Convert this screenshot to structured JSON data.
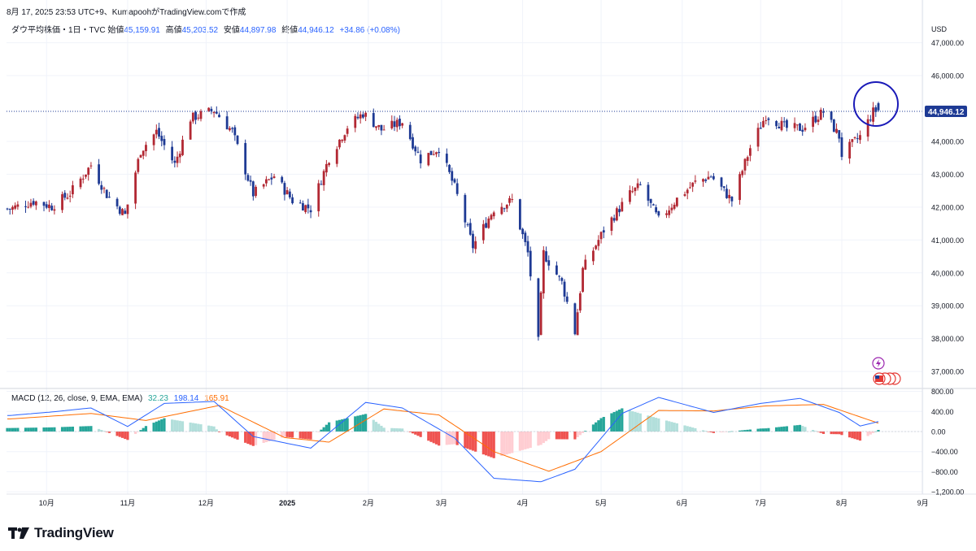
{
  "header": {
    "published": "8月 17, 2025 23:53 UTC+9、KumapoohがTradingView.comで作成",
    "symbol": "ダウ平均株価・1日・TVC",
    "open_label": "始値",
    "open_value": "45,159.91",
    "high_label": "高値",
    "high_value": "45,203.52",
    "low_label": "安値",
    "low_value": "44,897.98",
    "close_label": "終値",
    "close_value": "44,946.12",
    "change": "+34.86 (+0.08%)"
  },
  "price_axis": {
    "currency": "USD",
    "labels": [
      "47,000.00",
      "46,000.00",
      "44,946.12",
      "44,000.00",
      "43,000.00",
      "42,000.00",
      "41,000.00",
      "40,000.00",
      "39,000.00",
      "38,000.00",
      "37,000.00"
    ]
  },
  "macd": {
    "label": "MACD (12, 26, close, 9, EMA, EMA)",
    "hist_value": "32.23",
    "macd_value": "198.14",
    "signal_value": "165.91",
    "axis_labels": [
      "800.00",
      "400.00",
      "0.00",
      "−400.00",
      "−800.00",
      "−1,200.00"
    ],
    "colors": {
      "macd": "#2962ff",
      "signal": "#ff6d00",
      "hist_up": "#26a69a",
      "hist_down": "#ef5350"
    }
  },
  "time_axis": {
    "labels": [
      "10月",
      "11月",
      "12月",
      "2025",
      "2月",
      "3月",
      "4月",
      "5月",
      "6月",
      "7月",
      "8月",
      "9月"
    ]
  },
  "brand": {
    "name": "TradingView"
  },
  "chart_data": {
    "type": "candlestick",
    "colors": {
      "up": "#b22833",
      "down": "#1e3a94"
    },
    "ylim": [
      36700,
      47400
    ],
    "last_price": 44946.12,
    "close_series": [
      [
        "2024-09-17",
        41950
      ],
      [
        "2024-09-26",
        42180
      ],
      [
        "2024-10-03",
        42020
      ],
      [
        "2024-10-10",
        42420
      ],
      [
        "2024-10-18",
        43280
      ],
      [
        "2024-10-24",
        42380
      ],
      [
        "2024-10-31",
        41760
      ],
      [
        "2024-11-06",
        43720
      ],
      [
        "2024-11-12",
        44300
      ],
      [
        "2024-11-19",
        43300
      ],
      [
        "2024-11-25",
        44700
      ],
      [
        "2024-12-04",
        44950
      ],
      [
        "2024-12-11",
        44300
      ],
      [
        "2024-12-19",
        42400
      ],
      [
        "2024-12-27",
        42950
      ],
      [
        "2025-01-03",
        42200
      ],
      [
        "2025-01-10",
        41950
      ],
      [
        "2025-01-17",
        43500
      ],
      [
        "2025-01-24",
        44450
      ],
      [
        "2025-01-30",
        44850
      ],
      [
        "2025-02-06",
        44350
      ],
      [
        "2025-02-14",
        44600
      ],
      [
        "2025-02-21",
        43450
      ],
      [
        "2025-02-28",
        43800
      ],
      [
        "2025-03-06",
        42600
      ],
      [
        "2025-03-13",
        40800
      ],
      [
        "2025-03-21",
        41950
      ],
      [
        "2025-03-28",
        42200
      ],
      [
        "2025-04-03",
        40600
      ],
      [
        "2025-04-07",
        37900
      ],
      [
        "2025-04-09",
        40600
      ],
      [
        "2025-04-16",
        39700
      ],
      [
        "2025-04-21",
        38200
      ],
      [
        "2025-04-24",
        40100
      ],
      [
        "2025-05-02",
        41300
      ],
      [
        "2025-05-12",
        42400
      ],
      [
        "2025-05-16",
        42650
      ],
      [
        "2025-05-23",
        41600
      ],
      [
        "2025-05-30",
        42250
      ],
      [
        "2025-06-06",
        42750
      ],
      [
        "2025-06-12",
        42950
      ],
      [
        "2025-06-20",
        42200
      ],
      [
        "2025-06-27",
        43800
      ],
      [
        "2025-07-03",
        44800
      ],
      [
        "2025-07-11",
        44400
      ],
      [
        "2025-07-17",
        44400
      ],
      [
        "2025-07-25",
        44900
      ],
      [
        "2025-07-31",
        44150
      ],
      [
        "2025-08-01",
        43600
      ],
      [
        "2025-08-08",
        44150
      ],
      [
        "2025-08-13",
        44900
      ],
      [
        "2025-08-15",
        44946.12
      ]
    ],
    "macd_series": [
      [
        "2024-09-17",
        320
      ],
      [
        "2024-10-03",
        390
      ],
      [
        "2024-10-18",
        470
      ],
      [
        "2024-11-01",
        100
      ],
      [
        "2024-11-15",
        560
      ],
      [
        "2024-12-04",
        600
      ],
      [
        "2024-12-19",
        -100
      ],
      [
        "2025-01-10",
        -330
      ],
      [
        "2025-01-31",
        580
      ],
      [
        "2025-02-14",
        470
      ],
      [
        "2025-03-06",
        -130
      ],
      [
        "2025-03-21",
        -930
      ],
      [
        "2025-04-08",
        -1000
      ],
      [
        "2025-04-21",
        -750
      ],
      [
        "2025-05-09",
        360
      ],
      [
        "2025-05-23",
        680
      ],
      [
        "2025-06-13",
        380
      ],
      [
        "2025-07-01",
        560
      ],
      [
        "2025-07-16",
        660
      ],
      [
        "2025-07-31",
        380
      ],
      [
        "2025-08-08",
        110
      ],
      [
        "2025-08-15",
        198.14
      ]
    ],
    "signal_series": [
      [
        "2024-09-17",
        250
      ],
      [
        "2024-10-18",
        360
      ],
      [
        "2024-11-08",
        220
      ],
      [
        "2024-12-06",
        520
      ],
      [
        "2024-12-31",
        -120
      ],
      [
        "2025-01-17",
        -210
      ],
      [
        "2025-02-07",
        450
      ],
      [
        "2025-02-28",
        330
      ],
      [
        "2025-03-21",
        -400
      ],
      [
        "2025-04-11",
        -790
      ],
      [
        "2025-05-01",
        -400
      ],
      [
        "2025-05-23",
        420
      ],
      [
        "2025-06-13",
        410
      ],
      [
        "2025-07-03",
        510
      ],
      [
        "2025-07-25",
        540
      ],
      [
        "2025-08-15",
        165.91
      ]
    ]
  }
}
